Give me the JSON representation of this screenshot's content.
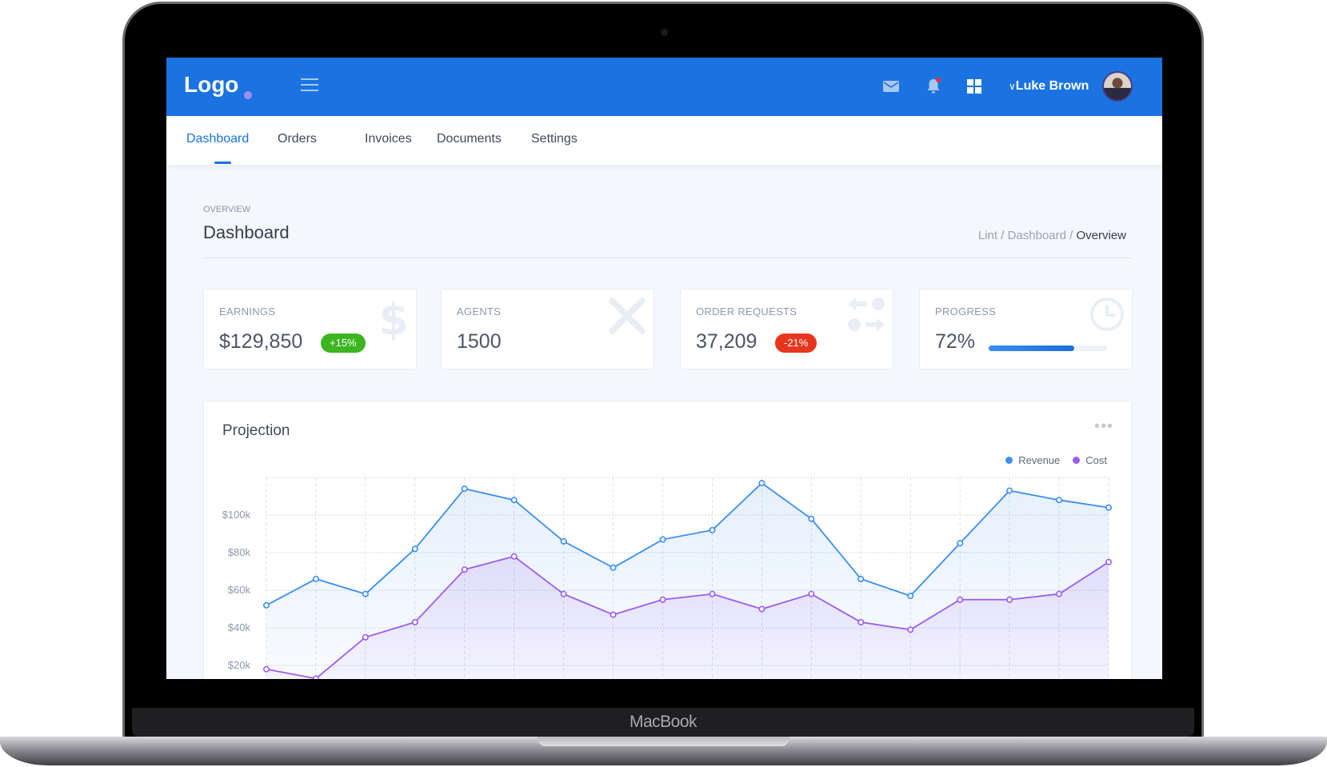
{
  "device": {
    "brand_label": "MacBook"
  },
  "header": {
    "logo": "Logo",
    "user_name": "Luke Brown",
    "icons": [
      "menu-icon",
      "mail-icon",
      "bell-icon",
      "grid-icon",
      "chevron-down-icon"
    ],
    "accent": "#1a73e0"
  },
  "nav": {
    "tabs": [
      {
        "label": "Dashboard",
        "active": true
      },
      {
        "label": "Orders"
      },
      {
        "label": "Invoices"
      },
      {
        "label": "Documents"
      },
      {
        "label": "Settings"
      }
    ]
  },
  "page": {
    "overline": "OVERVIEW",
    "title": "Dashboard",
    "breadcrumb": [
      "Lint",
      "Dashboard",
      "Overview"
    ],
    "separator": " / "
  },
  "cards": [
    {
      "label": "EARNINGS",
      "value": "$129,850",
      "badge": "+15%",
      "badge_color": "#3cb521",
      "icon": "dollar-icon"
    },
    {
      "label": "AGENTS",
      "value": "1500",
      "icon": "tools-icon"
    },
    {
      "label": "ORDER REQUESTS",
      "value": "37,209",
      "badge": "-21%",
      "badge_color": "#e8351e",
      "icon": "transfer-icon"
    },
    {
      "label": "PROGRESS",
      "value": "72%",
      "progress": 72,
      "icon": "clock-icon"
    }
  ],
  "projection": {
    "title": "Projection",
    "menu_label": "•••"
  },
  "chart_data": {
    "type": "area",
    "ylim": [
      0,
      120000
    ],
    "yticks": [
      "$20k",
      "$40k",
      "$60k",
      "$80k",
      "$100k"
    ],
    "ytick_values": [
      20000,
      40000,
      60000,
      80000,
      100000
    ],
    "grid": true,
    "legend": "top-right",
    "series": [
      {
        "name": "Revenue",
        "color": "#3a8ef0",
        "values": [
          52000,
          66000,
          58000,
          82000,
          114000,
          108000,
          86000,
          72000,
          87000,
          92000,
          117000,
          98000,
          66000,
          57000,
          85000,
          113000,
          108000,
          104000
        ]
      },
      {
        "name": "Cost",
        "color": "#9b5cf0",
        "values": [
          18000,
          13000,
          35000,
          43000,
          71000,
          78000,
          58000,
          47000,
          55000,
          58000,
          50000,
          58000,
          43000,
          39000,
          55000,
          55000,
          58000,
          75000
        ]
      }
    ]
  }
}
